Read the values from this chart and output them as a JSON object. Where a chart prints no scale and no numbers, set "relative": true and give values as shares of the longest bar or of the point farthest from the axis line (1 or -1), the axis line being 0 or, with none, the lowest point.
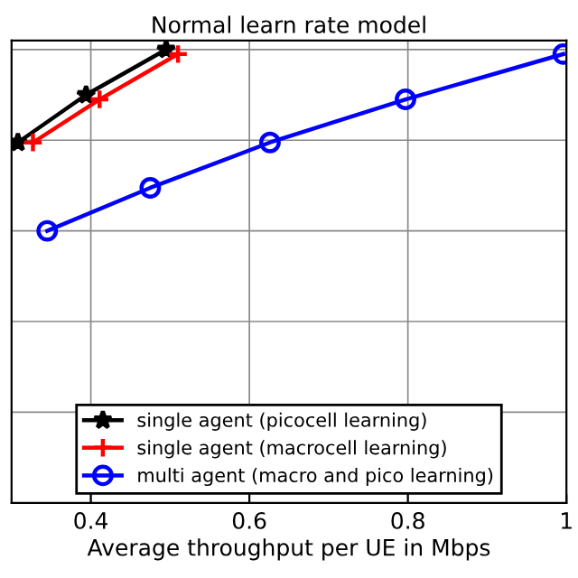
{
  "chart_data": {
    "type": "line",
    "title": "Normal learn rate model",
    "xlabel": "Average throughput per UE in Mbps",
    "relative": true,
    "xlim": [
      0.3,
      1.0
    ],
    "xticks": [
      0.4,
      0.6,
      0.8,
      1
    ],
    "grid": true,
    "legend": "bottom",
    "line_style": "solid",
    "series": [
      {
        "name": "single agent (picocell learning)",
        "color": "#000000",
        "marker": "star",
        "x": [
          0.308,
          0.394,
          0.495
        ],
        "values": [
          0.795,
          0.9,
          1.0
        ]
      },
      {
        "name": "single agent (macrocell learning)",
        "color": "#ff0000",
        "marker": "cross",
        "x": [
          0.327,
          0.411,
          0.51
        ],
        "values": [
          0.795,
          0.89,
          0.99
        ]
      },
      {
        "name": "multi agent (macro and pico learning)",
        "color": "#0000ff",
        "marker": "circle",
        "x": [
          0.345,
          0.475,
          0.626,
          0.797,
          0.996
        ],
        "values": [
          0.6,
          0.695,
          0.795,
          0.89,
          0.99
        ]
      }
    ]
  }
}
